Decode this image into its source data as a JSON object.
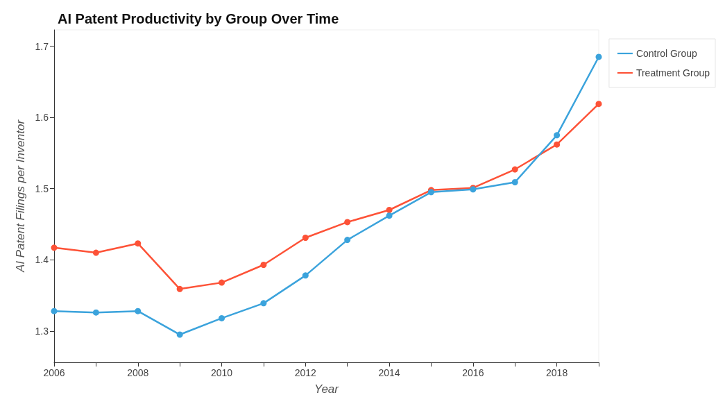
{
  "chart_data": {
    "type": "line",
    "title": "AI Patent Productivity by Group Over Time",
    "xlabel": "Year",
    "ylabel": "AI Patent Filings per Inventor",
    "x": [
      2006,
      2007,
      2008,
      2009,
      2010,
      2011,
      2012,
      2013,
      2014,
      2015,
      2016,
      2017,
      2018,
      2019
    ],
    "series": [
      {
        "name": "Control Group",
        "color": "#3ba3dc",
        "values": [
          1.328,
          1.326,
          1.328,
          1.295,
          1.318,
          1.339,
          1.378,
          1.428,
          1.462,
          1.495,
          1.499,
          1.509,
          1.575,
          1.685
        ]
      },
      {
        "name": "Treatment Group",
        "color": "#fd5237",
        "values": [
          1.417,
          1.41,
          1.423,
          1.359,
          1.368,
          1.393,
          1.431,
          1.453,
          1.47,
          1.498,
          1.501,
          1.527,
          1.562,
          1.619
        ]
      }
    ],
    "xlim": [
      2006,
      2019
    ],
    "xticks": [
      2006,
      {
        "value": 2007,
        "label": null
      },
      2008,
      {
        "value": 2009,
        "label": null
      },
      2010,
      {
        "value": 2011,
        "label": null
      },
      2012,
      {
        "value": 2013,
        "label": null
      },
      2014,
      {
        "value": 2015,
        "label": null
      },
      2016,
      {
        "value": 2017,
        "label": null
      },
      2018,
      {
        "value": 2019,
        "label": null
      }
    ],
    "ylim": [
      1.256,
      1.723
    ],
    "yticks": [
      1.3,
      1.4,
      1.5,
      1.6,
      1.7
    ],
    "grid": false,
    "legend": "top right",
    "marker": "circle",
    "line_style": "solid"
  }
}
